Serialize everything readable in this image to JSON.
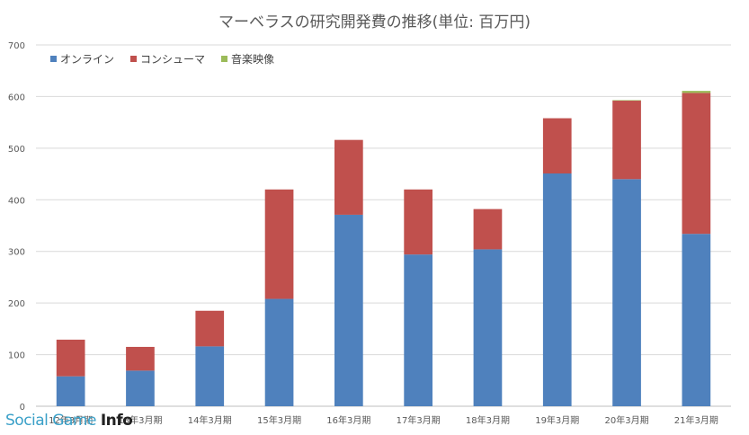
{
  "chart_data": {
    "type": "bar",
    "stacked": true,
    "title": "マーベラスの研究開発費の推移(単位: 百万円)",
    "categories": [
      "12年3月期",
      "13年3月期",
      "14年3月期",
      "15年3月期",
      "16年3月期",
      "17年3月期",
      "18年3月期",
      "19年3月期",
      "20年3月期",
      "21年3月期"
    ],
    "series": [
      {
        "name": "オンライン",
        "color": "#4f81bd",
        "values": [
          58,
          69,
          116,
          208,
          371,
          294,
          304,
          451,
          440,
          334
        ]
      },
      {
        "name": "コンシューマ",
        "color": "#c0504d",
        "values": [
          71,
          46,
          69,
          212,
          145,
          126,
          78,
          107,
          152,
          273
        ]
      },
      {
        "name": "音楽映像",
        "color": "#9bbb59",
        "values": [
          0,
          0,
          0,
          0,
          0,
          0,
          0,
          0,
          1,
          4
        ]
      }
    ],
    "ylim": [
      0,
      700
    ],
    "yticks": [
      0,
      100,
      200,
      300,
      400,
      500,
      600,
      700
    ],
    "grid": true,
    "legend": "top-left"
  },
  "watermark": {
    "prefix": "Social Game ",
    "suffix": "Info"
  }
}
